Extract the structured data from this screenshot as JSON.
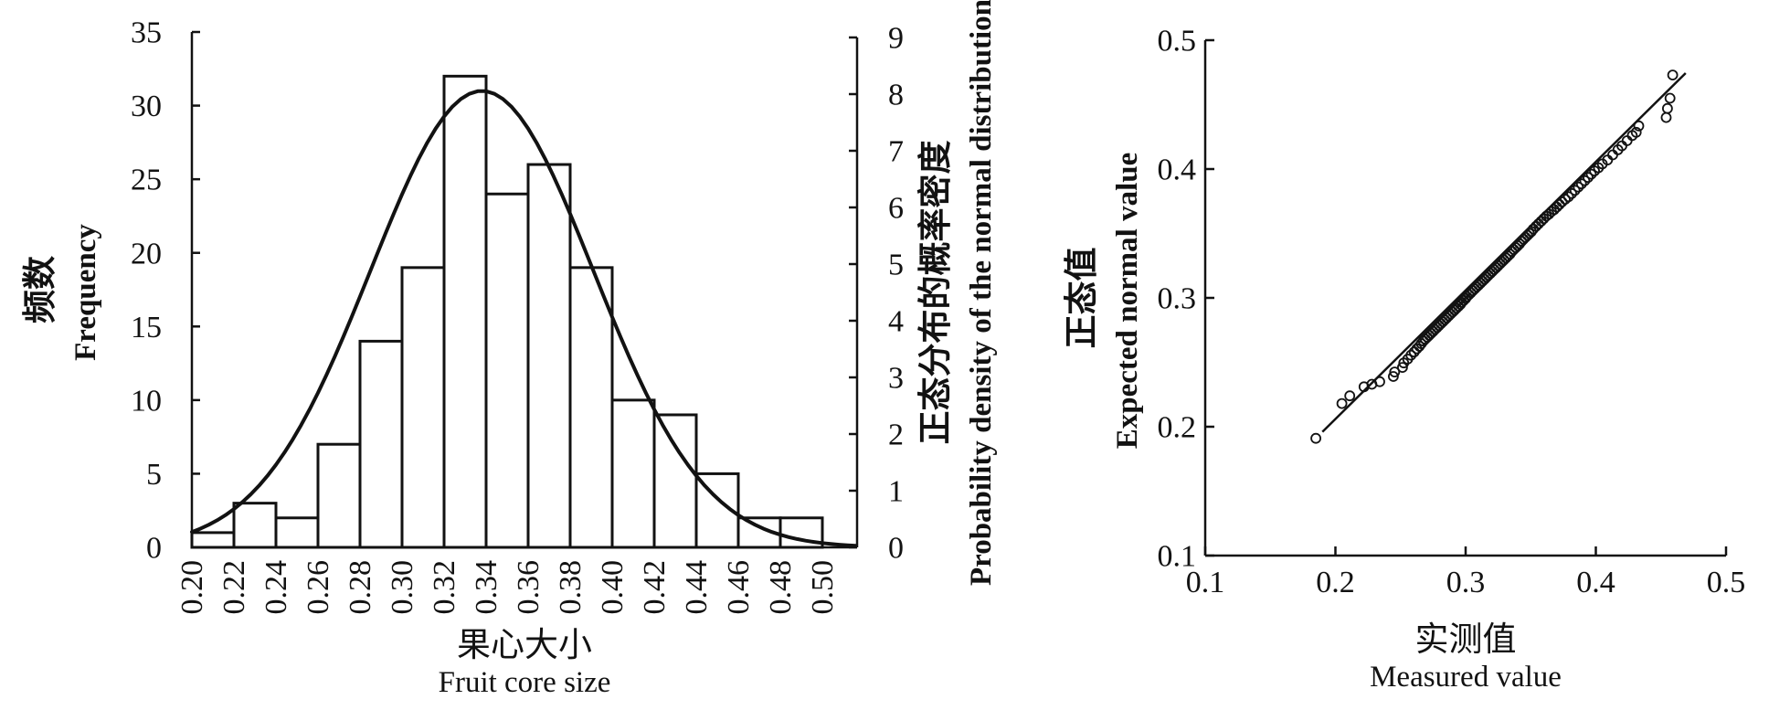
{
  "figure": {
    "background": "#ffffff",
    "ink_color": "#121212",
    "panels": [
      "histogram-with-normal-curve",
      "qq-plot"
    ]
  },
  "chart_data": [
    {
      "id": "histogram",
      "type": "bar",
      "title": "",
      "bin_start": 0.2,
      "bin_width": 0.02,
      "categories": [
        "0.20",
        "0.22",
        "0.24",
        "0.26",
        "0.28",
        "0.30",
        "0.32",
        "0.34",
        "0.36",
        "0.38",
        "0.40",
        "0.42",
        "0.44",
        "0.46",
        "0.48",
        "0.50"
      ],
      "values": [
        1,
        3,
        2,
        7,
        14,
        19,
        32,
        24,
        26,
        19,
        10,
        9,
        5,
        2,
        2
      ],
      "xlabel_zh": "果心大小",
      "xlabel_en": "Fruit core size",
      "y_left": {
        "label_zh": "频数",
        "label_en": "Frequency",
        "ticks": [
          0,
          5,
          10,
          15,
          20,
          25,
          30,
          35
        ],
        "range": [
          0,
          35
        ]
      },
      "y_right": {
        "label_zh": "正态分布的概率密度",
        "label_en": "Probability density of the normal distribution",
        "ticks": [
          0,
          1,
          2,
          3,
          4,
          5,
          6,
          7,
          8,
          9
        ],
        "range": [
          0,
          9
        ]
      },
      "x_range": [
        0.2,
        0.5
      ],
      "grid": false,
      "bar_fill": "none",
      "normal_curve": {
        "mean": 0.338,
        "sigma": 0.053,
        "peak_frequency": 31
      }
    },
    {
      "id": "qq-plot",
      "type": "scatter",
      "title": "",
      "xlabel_zh": "实测值",
      "xlabel_en": "Measured value",
      "ylabel_zh": "正态值",
      "ylabel_en": "Expected normal value",
      "x_ticks": [
        0.1,
        0.2,
        0.3,
        0.4,
        0.5
      ],
      "y_ticks": [
        0.1,
        0.2,
        0.3,
        0.4,
        0.5
      ],
      "x_range": [
        0.1,
        0.5
      ],
      "y_range": [
        0.1,
        0.5
      ],
      "grid": false,
      "marker": "open-circle",
      "reference_line": {
        "x1": 0.19,
        "y1": 0.196,
        "x2": 0.469,
        "y2": 0.4745
      },
      "points": [
        [
          0.185,
          0.191
        ],
        [
          0.205,
          0.218
        ],
        [
          0.211,
          0.224
        ],
        [
          0.222,
          0.231
        ],
        [
          0.228,
          0.233
        ],
        [
          0.234,
          0.235
        ],
        [
          0.2445,
          0.239
        ],
        [
          0.2455,
          0.2425
        ],
        [
          0.2515,
          0.246
        ],
        [
          0.2525,
          0.2495
        ],
        [
          0.2555,
          0.2525
        ],
        [
          0.258,
          0.2555
        ],
        [
          0.2605,
          0.258
        ],
        [
          0.2625,
          0.2605
        ],
        [
          0.2645,
          0.2625
        ],
        [
          0.266,
          0.2645
        ],
        [
          0.2675,
          0.2665
        ],
        [
          0.269,
          0.268
        ],
        [
          0.2705,
          0.2695
        ],
        [
          0.272,
          0.271
        ],
        [
          0.2735,
          0.2725
        ],
        [
          0.275,
          0.274
        ],
        [
          0.2765,
          0.2755
        ],
        [
          0.278,
          0.277
        ],
        [
          0.2795,
          0.2785
        ],
        [
          0.281,
          0.28
        ],
        [
          0.2825,
          0.2815
        ],
        [
          0.284,
          0.283
        ],
        [
          0.2855,
          0.2845
        ],
        [
          0.287,
          0.286
        ],
        [
          0.2885,
          0.2875
        ],
        [
          0.29,
          0.289
        ],
        [
          0.2915,
          0.2905
        ],
        [
          0.293,
          0.292
        ],
        [
          0.2945,
          0.2935
        ],
        [
          0.296,
          0.295
        ],
        [
          0.297,
          0.2965
        ],
        [
          0.2985,
          0.298
        ],
        [
          0.3,
          0.2995
        ],
        [
          0.301,
          0.301
        ],
        [
          0.3025,
          0.3025
        ],
        [
          0.304,
          0.304
        ],
        [
          0.3055,
          0.3055
        ],
        [
          0.307,
          0.307
        ],
        [
          0.3085,
          0.3085
        ],
        [
          0.31,
          0.31
        ],
        [
          0.3115,
          0.3115
        ],
        [
          0.313,
          0.313
        ],
        [
          0.3145,
          0.3145
        ],
        [
          0.316,
          0.316
        ],
        [
          0.3175,
          0.3175
        ],
        [
          0.319,
          0.319
        ],
        [
          0.3205,
          0.3205
        ],
        [
          0.322,
          0.322
        ],
        [
          0.3235,
          0.3235
        ],
        [
          0.325,
          0.325
        ],
        [
          0.3265,
          0.3265
        ],
        [
          0.328,
          0.328
        ],
        [
          0.3295,
          0.3295
        ],
        [
          0.331,
          0.331
        ],
        [
          0.3325,
          0.3325
        ],
        [
          0.334,
          0.334
        ],
        [
          0.3355,
          0.336
        ],
        [
          0.337,
          0.3375
        ],
        [
          0.3385,
          0.339
        ],
        [
          0.34,
          0.3405
        ],
        [
          0.3415,
          0.342
        ],
        [
          0.343,
          0.344
        ],
        [
          0.3445,
          0.3455
        ],
        [
          0.346,
          0.347
        ],
        [
          0.3475,
          0.3485
        ],
        [
          0.349,
          0.35
        ],
        [
          0.3505,
          0.3515
        ],
        [
          0.352,
          0.3535
        ],
        [
          0.354,
          0.3555
        ],
        [
          0.356,
          0.3575
        ],
        [
          0.358,
          0.3595
        ],
        [
          0.36,
          0.3615
        ],
        [
          0.362,
          0.3635
        ],
        [
          0.364,
          0.365
        ],
        [
          0.366,
          0.367
        ],
        [
          0.368,
          0.3685
        ],
        [
          0.37,
          0.3705
        ],
        [
          0.372,
          0.3725
        ],
        [
          0.374,
          0.3745
        ],
        [
          0.3765,
          0.3765
        ],
        [
          0.379,
          0.3785
        ],
        [
          0.3815,
          0.381
        ],
        [
          0.384,
          0.3835
        ],
        [
          0.3865,
          0.386
        ],
        [
          0.389,
          0.3885
        ],
        [
          0.3915,
          0.391
        ],
        [
          0.394,
          0.3935
        ],
        [
          0.3965,
          0.396
        ],
        [
          0.399,
          0.3985
        ],
        [
          0.402,
          0.401
        ],
        [
          0.405,
          0.404
        ],
        [
          0.409,
          0.407
        ],
        [
          0.413,
          0.411
        ],
        [
          0.417,
          0.415
        ],
        [
          0.42,
          0.418
        ],
        [
          0.424,
          0.422
        ],
        [
          0.428,
          0.426
        ],
        [
          0.431,
          0.4285
        ],
        [
          0.433,
          0.4335
        ],
        [
          0.454,
          0.44
        ],
        [
          0.455,
          0.447
        ],
        [
          0.457,
          0.455
        ],
        [
          0.459,
          0.473
        ]
      ]
    }
  ]
}
